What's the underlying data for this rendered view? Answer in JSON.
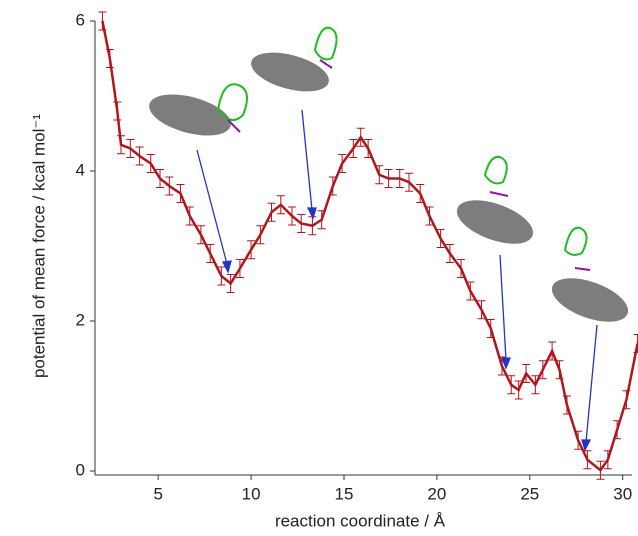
{
  "chart_data": {
    "type": "line",
    "xlabel": "reaction coordinate / Å",
    "ylabel": "potential of mean force / kcal mol⁻¹",
    "x": [
      2.0,
      2.4,
      2.8,
      3.0,
      3.5,
      4.0,
      4.6,
      5.1,
      5.6,
      6.2,
      6.7,
      7.3,
      7.8,
      8.4,
      8.9,
      9.4,
      10.0,
      10.5,
      11.1,
      11.6,
      12.2,
      12.7,
      13.3,
      13.8,
      14.4,
      14.9,
      15.5,
      15.9,
      16.3,
      16.9,
      17.4,
      18.0,
      18.5,
      19.1,
      19.6,
      20.2,
      20.7,
      21.3,
      21.8,
      22.4,
      22.9,
      23.5,
      24.0,
      24.4,
      24.8,
      25.3,
      25.7,
      26.2,
      26.6,
      27.0,
      27.6,
      28.1,
      28.8,
      29.2,
      29.7,
      30.2,
      30.8
    ],
    "series": [
      {
        "color": "#b0161c",
        "values": [
          6.0,
          5.5,
          4.8,
          4.35,
          4.3,
          4.2,
          4.1,
          3.9,
          3.8,
          3.7,
          3.4,
          3.15,
          2.9,
          2.6,
          2.5,
          2.7,
          2.95,
          3.15,
          3.45,
          3.55,
          3.4,
          3.3,
          3.27,
          3.35,
          3.8,
          4.1,
          4.3,
          4.45,
          4.3,
          3.95,
          3.9,
          3.9,
          3.85,
          3.7,
          3.4,
          3.1,
          2.9,
          2.7,
          2.4,
          2.15,
          1.9,
          1.4,
          1.15,
          1.08,
          1.3,
          1.15,
          1.35,
          1.6,
          1.35,
          0.88,
          0.41,
          0.15,
          0.01,
          0.15,
          0.55,
          0.95,
          1.7
        ],
        "error": 0.12
      }
    ],
    "xlim": [
      1.6,
      30.5
    ],
    "xticks": [
      5,
      10,
      15,
      20,
      25,
      30
    ],
    "ylim": [
      0,
      6
    ],
    "yticks": [
      0,
      2,
      4,
      6
    ]
  }
}
